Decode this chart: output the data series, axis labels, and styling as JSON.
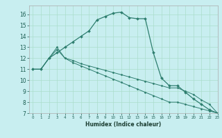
{
  "title": "",
  "xlabel": "Humidex (Indice chaleur)",
  "bg_color": "#c8eef0",
  "grid_color": "#aaddcc",
  "line_color": "#2d7d6e",
  "xlim": [
    -0.5,
    23
  ],
  "ylim": [
    7,
    16.8
  ],
  "xticks": [
    0,
    1,
    2,
    3,
    4,
    5,
    6,
    7,
    8,
    9,
    10,
    11,
    12,
    13,
    14,
    15,
    16,
    17,
    18,
    19,
    20,
    21,
    22,
    23
  ],
  "yticks": [
    7,
    8,
    9,
    10,
    11,
    12,
    13,
    14,
    15,
    16
  ],
  "line1_x": [
    0,
    1,
    2,
    3,
    4,
    5,
    6,
    7,
    8,
    9,
    10,
    11,
    12,
    13,
    14,
    15,
    16,
    17,
    18,
    19,
    20,
    21,
    22,
    23
  ],
  "line1_y": [
    11.0,
    11.0,
    12.0,
    12.5,
    13.0,
    13.5,
    14.0,
    14.5,
    15.5,
    15.8,
    16.1,
    16.2,
    15.7,
    15.6,
    15.6,
    12.5,
    10.2,
    9.5,
    9.5,
    8.9,
    8.3,
    7.8,
    7.3,
    7.0
  ],
  "line2_x": [
    0,
    1,
    2,
    3,
    4,
    5,
    6,
    7,
    8,
    9,
    10,
    11,
    12,
    13,
    14,
    15,
    16,
    17,
    18,
    19,
    20,
    21,
    22,
    23
  ],
  "line2_y": [
    11.0,
    11.0,
    12.0,
    12.8,
    12.0,
    11.8,
    11.5,
    11.3,
    11.1,
    10.9,
    10.7,
    10.5,
    10.3,
    10.1,
    9.9,
    9.7,
    9.5,
    9.3,
    9.3,
    9.0,
    8.7,
    8.2,
    7.8,
    7.0
  ],
  "line3_x": [
    0,
    1,
    2,
    3,
    4,
    5,
    6,
    7,
    8,
    9,
    10,
    11,
    12,
    13,
    14,
    15,
    16,
    17,
    18,
    19,
    20,
    21,
    22,
    23
  ],
  "line3_y": [
    11.0,
    11.0,
    12.0,
    13.0,
    12.0,
    11.6,
    11.3,
    11.0,
    10.7,
    10.4,
    10.1,
    9.8,
    9.5,
    9.2,
    8.9,
    8.6,
    8.3,
    8.0,
    8.0,
    7.8,
    7.6,
    7.4,
    7.2,
    7.0
  ]
}
